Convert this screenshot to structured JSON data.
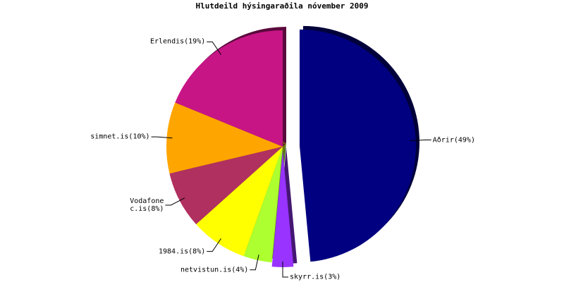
{
  "chart_data": {
    "type": "pie",
    "title": "Hlutdeild hýsingaraðila nóvember 2009",
    "categories": [
      "Aðrir",
      "skyrr.is",
      "netvistun.is",
      "1984.is",
      "Vodafone\nc.is",
      "simnet.is",
      "Erlendis"
    ],
    "values": [
      49,
      3,
      4,
      8,
      8,
      10,
      19
    ],
    "value_labels": [
      "(49%)",
      "(3%)",
      "(4%)",
      "(8%)",
      "(8%)",
      "(10%)",
      "(19%)"
    ],
    "colors": [
      "#000080",
      "#9933ff",
      "#adff2f",
      "#ffff00",
      "#b03060",
      "#ffa500",
      "#c71585"
    ]
  }
}
